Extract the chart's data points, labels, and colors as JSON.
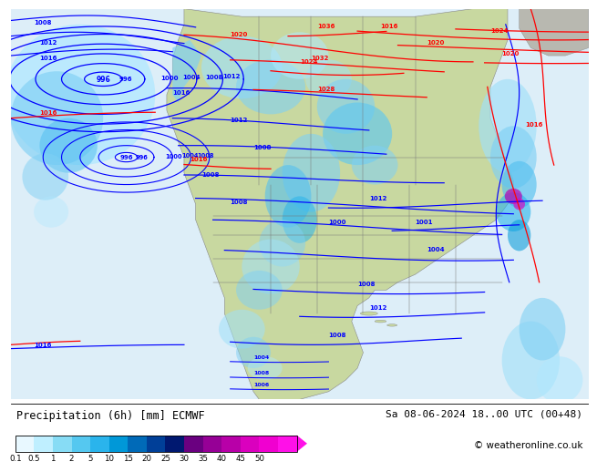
{
  "title_left": "Precipitation (6h) [mm] ECMWF",
  "title_right": "Sa 08-06-2024 18..00 UTC (00+48)",
  "copyright": "© weatheronline.co.uk",
  "colorbar_labels": [
    "0.1",
    "0.5",
    "1",
    "2",
    "5",
    "10",
    "15",
    "20",
    "25",
    "30",
    "35",
    "40",
    "45",
    "50"
  ],
  "colorbar_colors": [
    "#e8f8ff",
    "#bfefff",
    "#87dcf5",
    "#55c8f0",
    "#2ab4ec",
    "#0098d8",
    "#006ab8",
    "#003f98",
    "#001870",
    "#6a0080",
    "#960096",
    "#b800a8",
    "#da00be",
    "#f000d0",
    "#ff10e8"
  ],
  "ocean_color": "#ddeef8",
  "land_color": "#c8d8a0",
  "land_color2": "#d0d898",
  "gray_land": "#b8b8b0",
  "bg_color": "#ffffff",
  "fig_width": 6.34,
  "fig_height": 4.9
}
